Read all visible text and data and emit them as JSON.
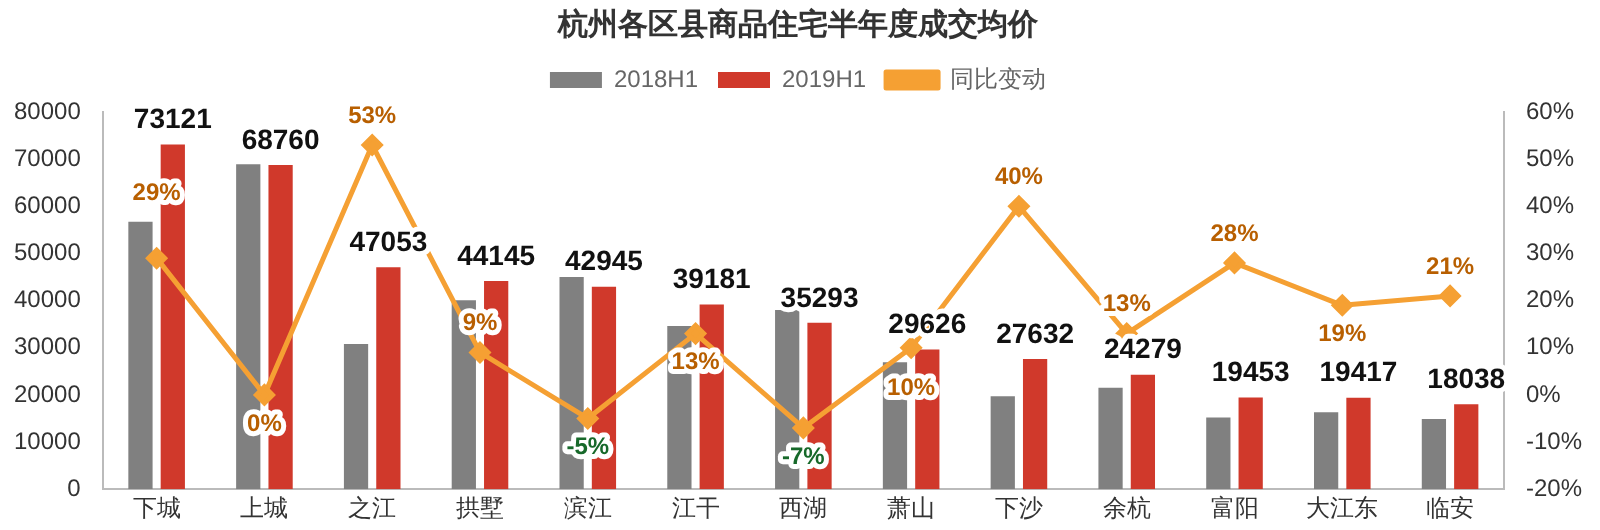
{
  "chart_data": {
    "type": "bar",
    "title": "杭州各区县商品住宅半年度成交均价",
    "categories": [
      "下城",
      "上城",
      "之江",
      "拱墅",
      "滨江",
      "江干",
      "西湖",
      "萧山",
      "下沙",
      "余杭",
      "富阳",
      "大江东",
      "临安"
    ],
    "series": [
      {
        "name": "2018H1",
        "color": "#808080",
        "values": [
          56700,
          68900,
          30800,
          40100,
          45000,
          34600,
          38000,
          26900,
          19700,
          21500,
          15200,
          16300,
          14900
        ]
      },
      {
        "name": "2019H1",
        "color": "#d0392b",
        "values": [
          73121,
          68760,
          47053,
          44145,
          42945,
          39181,
          35293,
          29626,
          27632,
          24279,
          19453,
          19417,
          18038
        ],
        "value_labels": [
          "73121",
          "68760",
          "47053",
          "44145",
          "42945",
          "39181",
          "35293",
          "29626",
          "27632",
          "24279",
          "19453",
          "19417",
          "18038"
        ]
      },
      {
        "name": "同比变动",
        "type": "line",
        "axis": "y2",
        "color": "#f5a033",
        "marker": "diamond",
        "values": [
          29,
          0,
          53,
          9,
          -5,
          13,
          -7,
          10,
          40,
          13,
          28,
          19,
          21
        ],
        "value_labels": [
          "29%",
          "0%",
          "53%",
          "9%",
          "-5%",
          "13%",
          "-7%",
          "10%",
          "40%",
          "13%",
          "28%",
          "19%",
          "21%"
        ]
      }
    ],
    "ylim": [
      0,
      80000
    ],
    "yticks": [
      0,
      10000,
      20000,
      30000,
      40000,
      50000,
      60000,
      70000,
      80000
    ],
    "y2lim": [
      -20,
      60
    ],
    "y2ticks": [
      {
        "value": -20,
        "label": "-20%"
      },
      {
        "value": -10,
        "label": "-10%"
      },
      {
        "value": 0,
        "label": "0%"
      },
      {
        "value": 10,
        "label": "10%"
      },
      {
        "value": 20,
        "label": "20%"
      },
      {
        "value": 30,
        "label": "30%"
      },
      {
        "value": 40,
        "label": "40%"
      },
      {
        "value": 50,
        "label": "50%"
      },
      {
        "value": 60,
        "label": "60%"
      }
    ],
    "grid": false,
    "legend": "top"
  }
}
